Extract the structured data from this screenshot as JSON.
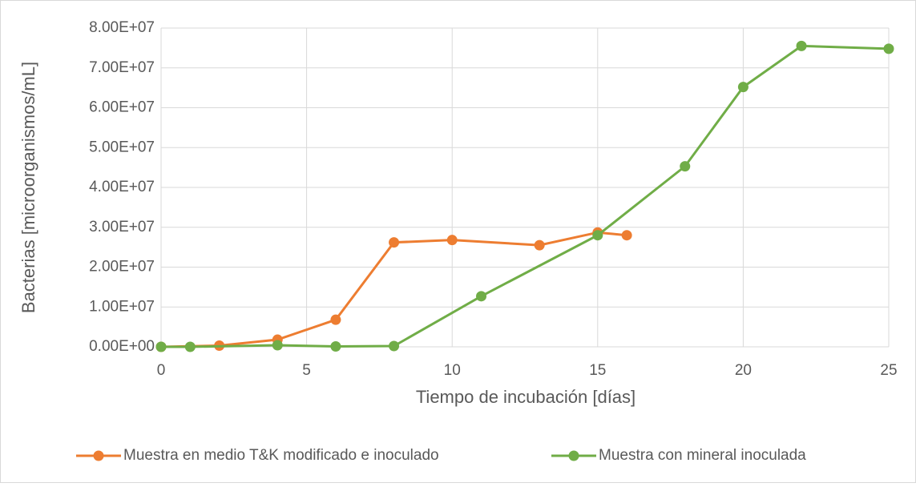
{
  "chart_data": {
    "type": "line",
    "x_label": "Tiempo de incubación [días]",
    "y_label": "Bacterias [microorganismos/mL]",
    "xlim": [
      0,
      25
    ],
    "xticks": [
      0,
      5,
      10,
      15,
      20,
      25
    ],
    "ylim": [
      0,
      80000000
    ],
    "yticks": [
      {
        "value": 0,
        "label": "0.00E+00"
      },
      {
        "value": 10000000,
        "label": "1.00E+07"
      },
      {
        "value": 20000000,
        "label": "2.00E+07"
      },
      {
        "value": 30000000,
        "label": "3.00E+07"
      },
      {
        "value": 40000000,
        "label": "4.00E+07"
      },
      {
        "value": 50000000,
        "label": "5.00E+07"
      },
      {
        "value": 60000000,
        "label": "6.00E+07"
      },
      {
        "value": 70000000,
        "label": "7.00E+07"
      },
      {
        "value": 80000000,
        "label": "8.00E+07"
      }
    ],
    "grid": true,
    "legend": "bottom",
    "series": [
      {
        "name": "Muestra en medio T&K modificado e inoculado",
        "color": "#ed7d31",
        "x": [
          0,
          2,
          4,
          6,
          8,
          10,
          13,
          15,
          16
        ],
        "values": [
          0,
          300000,
          1800000,
          6800000,
          26200000,
          26800000,
          25500000,
          28700000,
          28000000
        ]
      },
      {
        "name": "Muestra con mineral inoculada",
        "color": "#70ad47",
        "x": [
          0,
          1,
          4,
          6,
          8,
          11,
          15,
          18,
          20,
          22,
          25
        ],
        "values": [
          0,
          0,
          400000,
          100000,
          200000,
          12700000,
          28000000,
          45300000,
          65200000,
          75500000,
          74800000
        ]
      }
    ]
  }
}
